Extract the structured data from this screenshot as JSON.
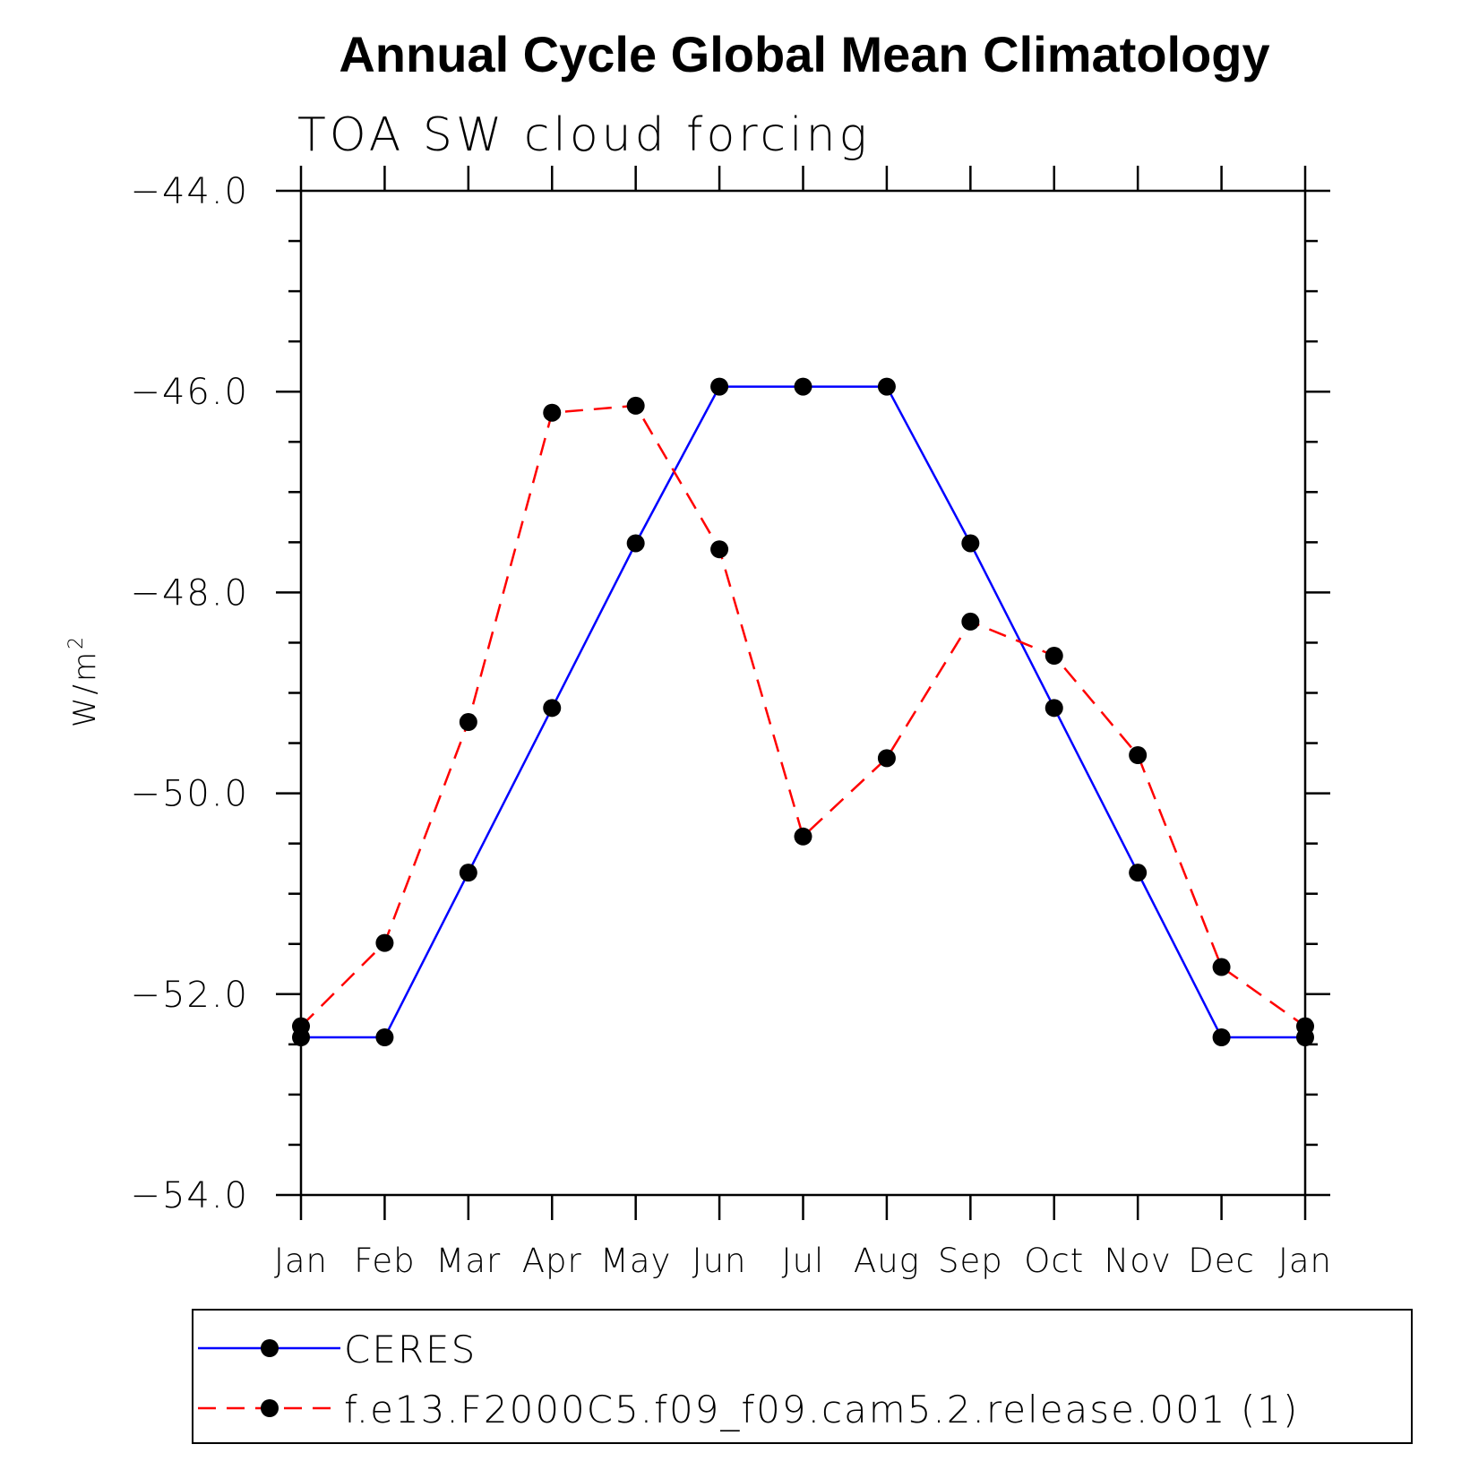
{
  "chart_data": {
    "type": "line",
    "title": "Annual Cycle Global Mean Climatology",
    "subtitle": "TOA SW cloud forcing",
    "ylabel_base": "W/m",
    "ylabel_sup": "2",
    "xlabel": "",
    "ylim": [
      -54,
      -44
    ],
    "yticks": [
      -44,
      -46,
      -48,
      -50,
      -52,
      -54
    ],
    "ytick_labels": [
      "−44.0",
      "−46.0",
      "−48.0",
      "−50.0",
      "−52.0",
      "−54.0"
    ],
    "categories": [
      "Jan",
      "Feb",
      "Mar",
      "Apr",
      "May",
      "Jun",
      "Jul",
      "Aug",
      "Sep",
      "Oct",
      "Nov",
      "Dec",
      "Jan"
    ],
    "series": [
      {
        "name": "CERES",
        "color": "#0000ff",
        "dash": "solid",
        "values": [
          -52.43,
          -52.43,
          -50.79,
          -49.15,
          -47.51,
          -45.95,
          -45.95,
          -45.95,
          -47.51,
          -49.15,
          -50.79,
          -52.43,
          -52.43
        ]
      },
      {
        "name": "f.e13.F2000C5.f09_f09.cam5.2.release.001 (1)",
        "color": "#ff0000",
        "dash": "dashed",
        "values": [
          -52.32,
          -51.49,
          -49.29,
          -46.21,
          -46.14,
          -47.57,
          -50.43,
          -49.65,
          -48.29,
          -48.63,
          -49.62,
          -51.73,
          -52.32
        ]
      }
    ],
    "legend_position": "bottom"
  }
}
